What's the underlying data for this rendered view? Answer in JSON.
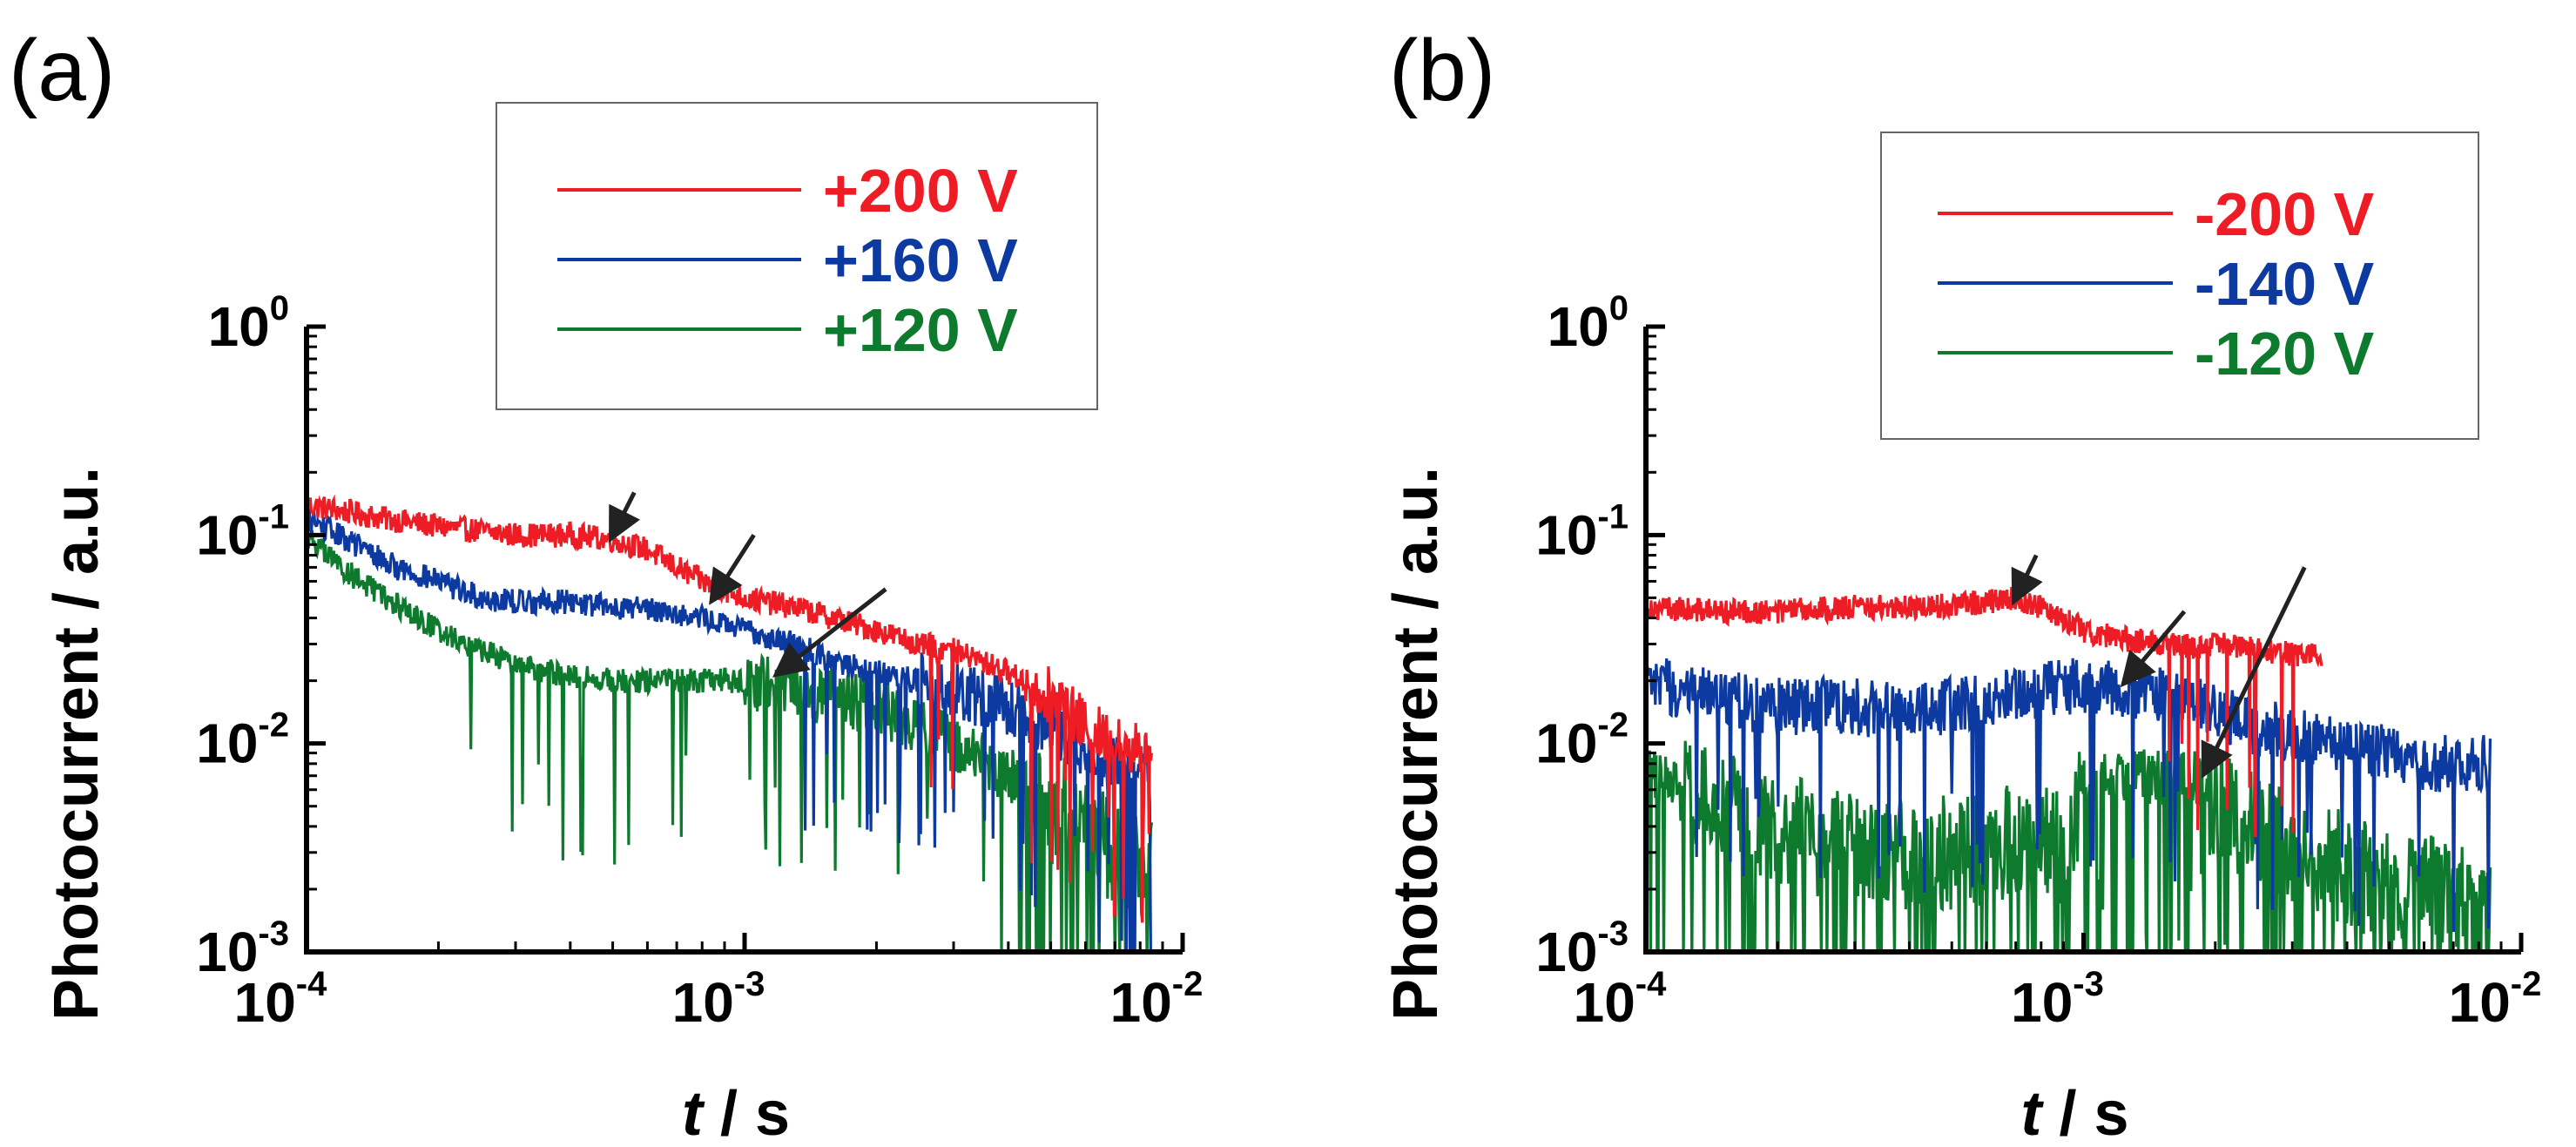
{
  "chart_data": [
    {
      "type": "line",
      "panel_label": "(a)",
      "xscale": "log",
      "yscale": "log",
      "xlim": [
        0.0001,
        0.01
      ],
      "ylim": [
        0.001,
        1
      ],
      "x_ticks": [
        {
          "base": "10",
          "exp": "-4"
        },
        {
          "base": "10",
          "exp": "-3"
        },
        {
          "base": "10",
          "exp": "-2"
        }
      ],
      "y_ticks": [
        {
          "base": "10",
          "exp": "-3"
        },
        {
          "base": "10",
          "exp": "-2"
        },
        {
          "base": "10",
          "exp": "-1"
        },
        {
          "base": "10",
          "exp": "0"
        }
      ],
      "ylabel": "Photocurrent / a.u.",
      "xlabel_var": "t",
      "xlabel_unit": " / s",
      "legend_position": "top-right",
      "series": [
        {
          "name": "+200 V",
          "color": "#ee1c25",
          "x": [
            0.0001,
            0.00015,
            0.0002,
            0.0003,
            0.0004,
            0.0005,
            0.0006,
            0.0007,
            0.0008,
            0.001,
            0.0013,
            0.0016,
            0.002,
            0.0025,
            0.003,
            0.004,
            0.005,
            0.006,
            0.007,
            0.0085
          ],
          "y": [
            0.14,
            0.12,
            0.11,
            0.1,
            0.1,
            0.095,
            0.085,
            0.07,
            0.06,
            0.05,
            0.045,
            0.04,
            0.035,
            0.03,
            0.028,
            0.022,
            0.017,
            0.012,
            0.01,
            0.009
          ]
        },
        {
          "name": "+160 V",
          "color": "#0d3aa0",
          "x": [
            0.0001,
            0.00013,
            0.00016,
            0.0002,
            0.00025,
            0.0003,
            0.0004,
            0.0005,
            0.0006,
            0.0007,
            0.0008,
            0.001,
            0.0013,
            0.0016,
            0.002,
            0.0025,
            0.003,
            0.004,
            0.005,
            0.006,
            0.007,
            0.0085
          ],
          "y": [
            0.12,
            0.09,
            0.07,
            0.06,
            0.05,
            0.048,
            0.048,
            0.045,
            0.045,
            0.042,
            0.04,
            0.035,
            0.03,
            0.025,
            0.022,
            0.02,
            0.018,
            0.015,
            0.012,
            0.009,
            0.008,
            0.007
          ]
        },
        {
          "name": "+120 V",
          "color": "#0d7a2e",
          "x": [
            0.0001,
            0.00012,
            0.00015,
            0.0002,
            0.00025,
            0.0003,
            0.0004,
            0.0005,
            0.0006,
            0.0008,
            0.001,
            0.0012,
            0.0015,
            0.002,
            0.0025,
            0.003,
            0.004,
            0.005,
            0.006,
            0.007,
            0.0085
          ],
          "y": [
            0.1,
            0.07,
            0.05,
            0.035,
            0.028,
            0.024,
            0.021,
            0.02,
            0.02,
            0.02,
            0.02,
            0.019,
            0.017,
            0.015,
            0.012,
            0.01,
            0.007,
            0.005,
            0.004,
            0.003,
            0.0025
          ]
        }
      ],
      "annotations": [
        {
          "type": "arrow",
          "from": [
            0.00056,
            0.16
          ],
          "to": [
            0.0005,
            0.1
          ]
        },
        {
          "type": "arrow",
          "from": [
            0.00105,
            0.1
          ],
          "to": [
            0.00085,
            0.05
          ]
        },
        {
          "type": "arrow",
          "from": [
            0.0021,
            0.055
          ],
          "to": [
            0.0012,
            0.022
          ]
        }
      ]
    },
    {
      "type": "line",
      "panel_label": "(b)",
      "xscale": "log",
      "yscale": "log",
      "xlim": [
        0.0001,
        0.01
      ],
      "ylim": [
        0.001,
        1
      ],
      "x_ticks": [
        {
          "base": "10",
          "exp": "-4"
        },
        {
          "base": "10",
          "exp": "-3"
        },
        {
          "base": "10",
          "exp": "-2"
        }
      ],
      "y_ticks": [
        {
          "base": "10",
          "exp": "-3"
        },
        {
          "base": "10",
          "exp": "-2"
        },
        {
          "base": "10",
          "exp": "-1"
        },
        {
          "base": "10",
          "exp": "0"
        }
      ],
      "ylabel": "Photocurrent / a.u.",
      "xlabel_var": "t",
      "xlabel_unit": " / s",
      "legend_position": "top-right",
      "series": [
        {
          "name": "-200 V",
          "color": "#ee1c25",
          "x": [
            0.0001,
            0.00015,
            0.0002,
            0.0003,
            0.0004,
            0.0005,
            0.0006,
            0.0007,
            0.0008,
            0.0009,
            0.001,
            0.0012,
            0.0015,
            0.0018,
            0.002,
            0.0025,
            0.003,
            0.0035
          ],
          "y": [
            0.045,
            0.043,
            0.043,
            0.045,
            0.045,
            0.046,
            0.048,
            0.05,
            0.045,
            0.04,
            0.035,
            0.032,
            0.03,
            0.029,
            0.03,
            0.028,
            0.027,
            0.026
          ]
        },
        {
          "name": "-140 V",
          "color": "#0d3aa0",
          "x": [
            0.0001,
            0.00013,
            0.00016,
            0.0002,
            0.0003,
            0.0004,
            0.0005,
            0.0006,
            0.0007,
            0.0008,
            0.0009,
            0.001,
            0.0012,
            0.0014,
            0.0016,
            0.002,
            0.0025,
            0.003,
            0.004,
            0.005,
            0.006,
            0.007,
            0.0085
          ],
          "y": [
            0.019,
            0.018,
            0.016,
            0.015,
            0.015,
            0.014,
            0.015,
            0.016,
            0.018,
            0.018,
            0.019,
            0.019,
            0.018,
            0.018,
            0.017,
            0.014,
            0.012,
            0.011,
            0.01,
            0.009,
            0.008,
            0.008,
            0.008
          ]
        },
        {
          "name": "-120 V",
          "color": "#0d7a2e",
          "x": [
            0.0001,
            0.00012,
            0.00015,
            0.0002,
            0.0003,
            0.0004,
            0.0005,
            0.0006,
            0.0007,
            0.0008,
            0.0009,
            0.001,
            0.0012,
            0.0015,
            0.0018,
            0.002,
            0.0025,
            0.003,
            0.004,
            0.005,
            0.006,
            0.007,
            0.0085
          ],
          "y": [
            0.007,
            0.006,
            0.005,
            0.004,
            0.003,
            0.003,
            0.003,
            0.003,
            0.0035,
            0.0035,
            0.003,
            0.006,
            0.007,
            0.007,
            0.007,
            0.005,
            0.004,
            0.003,
            0.0025,
            0.002,
            0.002,
            0.0018,
            0.0015
          ]
        }
      ],
      "annotations": [
        {
          "type": "arrow",
          "from": [
            0.00078,
            0.08
          ],
          "to": [
            0.0007,
            0.05
          ]
        },
        {
          "type": "arrow",
          "from": [
            0.0017,
            0.043
          ],
          "to": [
            0.00125,
            0.02
          ]
        },
        {
          "type": "arrow",
          "from": [
            0.0032,
            0.07
          ],
          "to": [
            0.0019,
            0.0074
          ]
        }
      ]
    }
  ]
}
